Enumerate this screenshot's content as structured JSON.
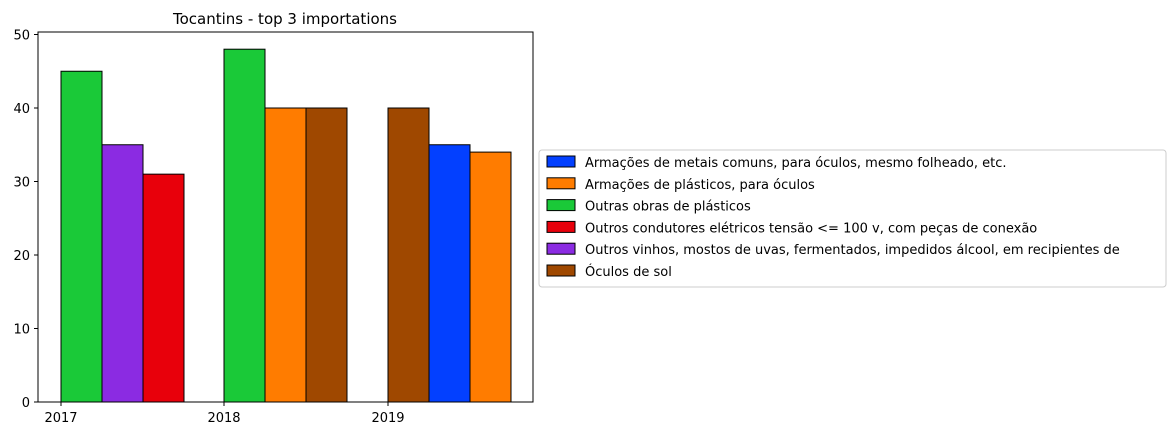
{
  "chart_data": {
    "type": "bar",
    "title": "Tocantins - top 3 importations",
    "xlabel": "",
    "ylabel": "",
    "ylim": [
      0,
      50
    ],
    "yticks": [
      0,
      10,
      20,
      30,
      40,
      50
    ],
    "xticks": [
      "2017",
      "2018",
      "2019"
    ],
    "grid": false,
    "legend_position": "right",
    "series": [
      {
        "name": "Armações de metais comuns, para óculos, mesmo folheado, etc.",
        "color": "#0340FF"
      },
      {
        "name": "Armações de plásticos, para óculos",
        "color": "#FF7C00"
      },
      {
        "name": "Outras obras de plásticos",
        "color": "#1AC938"
      },
      {
        "name": "Outros condutores elétricos tensão <= 100 v, com peças de conexão",
        "color": "#E8000B"
      },
      {
        "name": "Outros vinhos, mostos de uvas, fermentados, impedidos álcool, em recipientes de",
        "color": "#8B2BE2"
      },
      {
        "name": "Óculos de sol",
        "color": "#9F4800"
      }
    ],
    "groups": [
      {
        "year": "2017",
        "bars": [
          {
            "series": "Outras obras de plásticos",
            "value": 45
          },
          {
            "series": "Outros vinhos, mostos de uvas, fermentados, impedidos álcool, em recipientes de",
            "value": 35
          },
          {
            "series": "Outros condutores elétricos tensão <= 100 v, com peças de conexão",
            "value": 31
          }
        ]
      },
      {
        "year": "2018",
        "bars": [
          {
            "series": "Outras obras de plásticos",
            "value": 48
          },
          {
            "series": "Armações de plásticos, para óculos",
            "value": 40
          },
          {
            "series": "Óculos de sol",
            "value": 40
          }
        ]
      },
      {
        "year": "2019",
        "bars": [
          {
            "series": "Óculos de sol",
            "value": 40
          },
          {
            "series": "Armações de metais comuns, para óculos, mesmo folheado, etc.",
            "value": 35
          },
          {
            "series": "Armações de plásticos, para óculos",
            "value": 34
          }
        ]
      }
    ]
  }
}
